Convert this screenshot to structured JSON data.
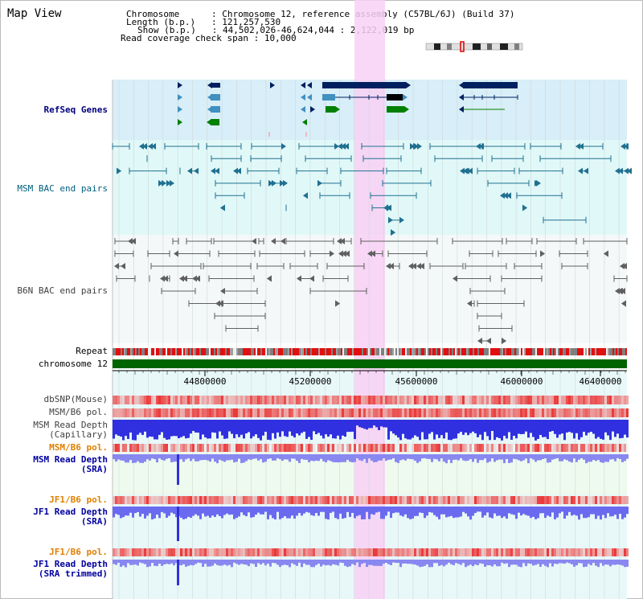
{
  "page": {
    "title": "Map View",
    "info": [
      {
        "key": "Chromosome",
        "value": "Chromosome 12, reference assembly (C57BL/6J) (Build 37)"
      },
      {
        "key": "Length (b.p.)",
        "value": "121,257,530"
      },
      {
        "key": "Show (b.p.)",
        "value": "44,502,026-46,624,044 : 2,122,019 bp"
      },
      {
        "key": "Read coverage check span",
        "value": "10,000"
      }
    ]
  },
  "tracks": {
    "refseq": {
      "label": "RefSeq Genes",
      "color": "#000080"
    },
    "msm_bac": {
      "label": "MSM BAC end pairs",
      "color": "#006080"
    },
    "b6n_bac": {
      "label": "B6N BAC end pairs",
      "color": "#404040"
    },
    "repeat": {
      "label": "Repeat",
      "color": "#000000"
    },
    "chromosome": {
      "label": "chromosome 12",
      "color": "#000000"
    },
    "dbsnp": {
      "label": "dbSNP(Mouse)",
      "color": "#404040"
    },
    "msm_b6_pol_1": {
      "label": "MSM/B6 pol.",
      "color": "#404040"
    },
    "msm_read_depth_cap": {
      "label": "MSM Read Depth",
      "sub": "(Capillary)",
      "color": "#404040"
    },
    "msm_b6_pol_2": {
      "label": "MSM/B6 pol.",
      "color": "#e08000"
    },
    "msm_read_depth_sra": {
      "label": "MSM Read Depth",
      "sub": "(SRA)",
      "color": "#0000a0"
    },
    "jf1_b6_pol_1": {
      "label": "JF1/B6 pol.",
      "color": "#e08000"
    },
    "jf1_read_depth_sra": {
      "label": "JF1 Read Depth",
      "sub": "(SRA)",
      "color": "#0000a0"
    },
    "jf1_b6_pol_2": {
      "label": "JF1/B6 pol.",
      "color": "#e08000"
    },
    "jf1_read_depth_trim": {
      "label": "JF1 Read Depth",
      "sub": "(SRA trimmed)",
      "color": "#0000a0"
    }
  },
  "axis": {
    "ticks": [
      "44800000",
      "45200000",
      "45600000",
      "46000000",
      "46400000"
    ]
  },
  "colors": {
    "refseq_bg": "#d8eef8",
    "msm_bg": "#e0f8f8",
    "b6n_bg": "#f4f8f8",
    "highlight": "#f8d0f4",
    "chrom_green": "#006400",
    "gene_navy": "#002060",
    "gene_lightblue": "#4090c0",
    "gene_green": "#008000",
    "msm_teal": "#207090",
    "b6n_gray": "#606060",
    "depth_blue": "#3030e0",
    "depth_light": "#8888f0",
    "pol_red": "#e04040"
  }
}
